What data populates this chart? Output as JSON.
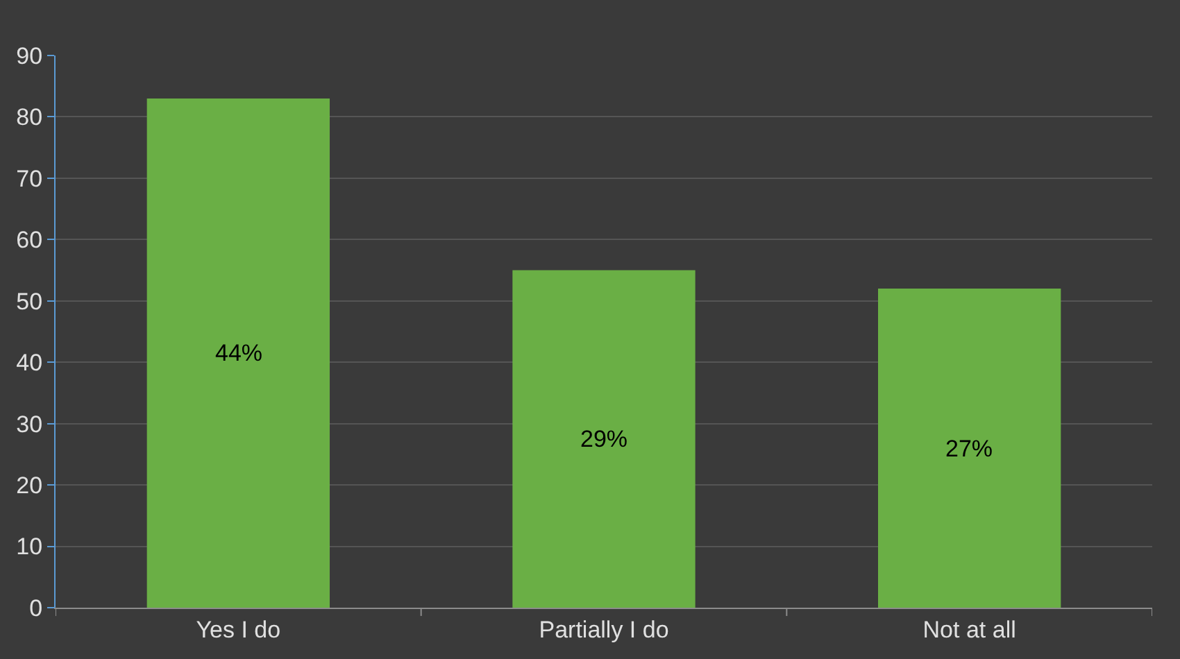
{
  "chart_data": {
    "type": "bar",
    "categories": [
      "Yes I do",
      "Partially I do",
      "Not at all"
    ],
    "values": [
      83,
      55,
      52
    ],
    "annotations": [
      "44%",
      "29%",
      "27%"
    ],
    "color": "#6aaf45",
    "ylim": [
      0,
      90
    ],
    "yticks": [
      0,
      10,
      20,
      30,
      40,
      50,
      60,
      70,
      80,
      90
    ],
    "grid": "y",
    "legend": false
  }
}
